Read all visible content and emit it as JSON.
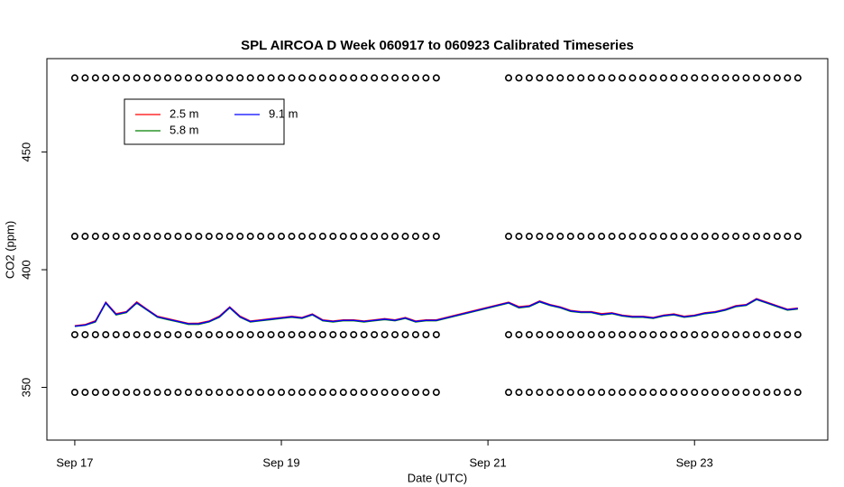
{
  "chart_data": {
    "type": "line",
    "title": "SPL AIRCOA D  Week 060917 to 060923  Calibrated Timeseries",
    "x_label": "Date (UTC)",
    "y_label": "CO2 (ppm)",
    "x": [
      17.0,
      17.1,
      17.2,
      17.3,
      17.4,
      17.5,
      17.6,
      17.7,
      17.8,
      17.9,
      18.0,
      18.1,
      18.2,
      18.3,
      18.4,
      18.5,
      18.6,
      18.7,
      18.8,
      18.9,
      19.0,
      19.1,
      19.2,
      19.3,
      19.4,
      19.5,
      19.6,
      19.7,
      19.8,
      19.9,
      20.0,
      20.1,
      20.2,
      20.3,
      20.4,
      20.5,
      21.2,
      21.3,
      21.4,
      21.5,
      21.6,
      21.7,
      21.8,
      21.9,
      22.0,
      22.1,
      22.2,
      22.3,
      22.4,
      22.5,
      22.6,
      22.7,
      22.8,
      22.9,
      23.0,
      23.1,
      23.2,
      23.3,
      23.4,
      23.5,
      23.6,
      23.7,
      23.8,
      23.9,
      24.0
    ],
    "series": [
      {
        "name": "2.5 m",
        "color": "#ff0000",
        "values": [
          376.2,
          376.7,
          378.3,
          386.2,
          381.3,
          382.2,
          386.3,
          383.2,
          380.2,
          379.2,
          378.2,
          377.2,
          377.3,
          378.2,
          380.3,
          384.2,
          380.3,
          378.2,
          378.7,
          379.2,
          379.7,
          380.2,
          379.7,
          381.2,
          378.7,
          378.2,
          378.7,
          378.7,
          378.2,
          378.7,
          379.2,
          378.7,
          379.7,
          378.2,
          378.7,
          378.7,
          386.2,
          384.3,
          384.7,
          386.7,
          385.2,
          384.2,
          382.7,
          382.2,
          382.2,
          381.3,
          381.7,
          380.7,
          380.2,
          380.2,
          379.7,
          380.7,
          381.2,
          380.2,
          380.7,
          381.7,
          382.2,
          383.2,
          384.7,
          385.2,
          387.7,
          386.2,
          384.7,
          383.2,
          383.7
        ]
      },
      {
        "name": "5.8 m",
        "color": "#008000",
        "values": [
          375.9,
          376.4,
          377.8,
          385.8,
          380.8,
          381.8,
          385.8,
          382.8,
          379.8,
          378.8,
          377.8,
          376.8,
          376.8,
          377.8,
          379.8,
          383.8,
          379.8,
          377.8,
          378.3,
          378.8,
          379.3,
          379.8,
          379.3,
          380.8,
          378.3,
          377.8,
          378.3,
          378.3,
          377.8,
          378.3,
          378.8,
          378.3,
          379.3,
          377.8,
          378.3,
          378.3,
          385.8,
          383.8,
          384.3,
          386.3,
          384.8,
          383.8,
          382.3,
          381.8,
          381.8,
          380.8,
          381.3,
          380.3,
          379.8,
          379.8,
          379.3,
          380.3,
          380.8,
          379.8,
          380.3,
          381.3,
          381.8,
          382.8,
          384.3,
          384.8,
          387.3,
          385.8,
          384.3,
          382.8,
          383.3
        ]
      },
      {
        "name": "9.1 m",
        "color": "#0000ff",
        "values": [
          376,
          376.5,
          378,
          386,
          381,
          382,
          386,
          383,
          380,
          379,
          378,
          377,
          377,
          378,
          380,
          384,
          380,
          378,
          378.5,
          379,
          379.5,
          380,
          379.5,
          381,
          378.5,
          378,
          378.5,
          378.5,
          378,
          378.5,
          379,
          378.5,
          379.5,
          378,
          378.5,
          378.5,
          386,
          384,
          384.5,
          386.5,
          385,
          384,
          382.5,
          382,
          382,
          381,
          381.5,
          380.5,
          380,
          380,
          379.5,
          380.5,
          381,
          380,
          380.5,
          381.5,
          382,
          383,
          384.5,
          385,
          387.5,
          386,
          384.5,
          383,
          383.5
        ]
      }
    ],
    "marker_levels": [
      481.5,
      414.2,
      372.4,
      347.9
    ],
    "marker_color": "#000000",
    "xlim": [
      16.73,
      24.29
    ],
    "xticks": [
      {
        "value": 17,
        "label": "Sep 17"
      },
      {
        "value": 19,
        "label": "Sep 19"
      },
      {
        "value": 21,
        "label": "Sep 21"
      },
      {
        "value": 23,
        "label": "Sep 23"
      }
    ],
    "ylim": [
      327.6,
      489.7
    ],
    "yticks": [
      350,
      400,
      450
    ],
    "legend": "top-left"
  }
}
